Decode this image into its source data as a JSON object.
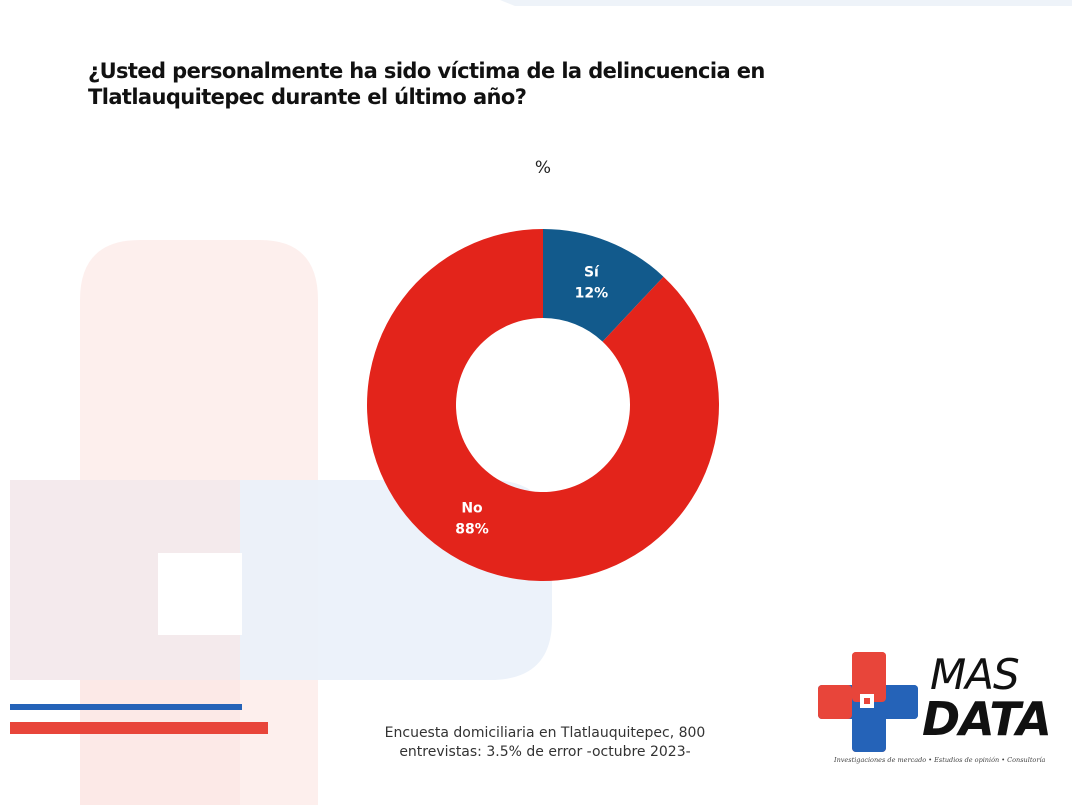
{
  "title": "¿Usted personalmente ha sido víctima de la delincuencia en Tlatlauquitepec durante el último año?",
  "unit_label": "%",
  "chart_data": {
    "type": "pie",
    "donut": true,
    "unit": "%",
    "categories": [
      "Sí",
      "No"
    ],
    "values": [
      12,
      88
    ],
    "labels": [
      "12%",
      "88%"
    ],
    "colors": [
      "#125a8c",
      "#e3241b"
    ],
    "legend": "none"
  },
  "footnote": {
    "line1": "Encuesta domiciliaria en Tlatlauquitepec, 800",
    "line2": "entrevistas: 3.5% de error -octubre 2023-"
  },
  "logo": {
    "line1": "MAS",
    "line2": "DATA",
    "tagline": "Investigaciones de mercado • Estudios de opinión • Consultoría",
    "colors": {
      "red": "#e8453a",
      "blue": "#2563b8",
      "dark": "#111111"
    }
  },
  "decor_colors": {
    "pink": "#fdecea",
    "light_blue": "#eaf1f9",
    "blue": "#2563b8",
    "red": "#e8453a"
  }
}
